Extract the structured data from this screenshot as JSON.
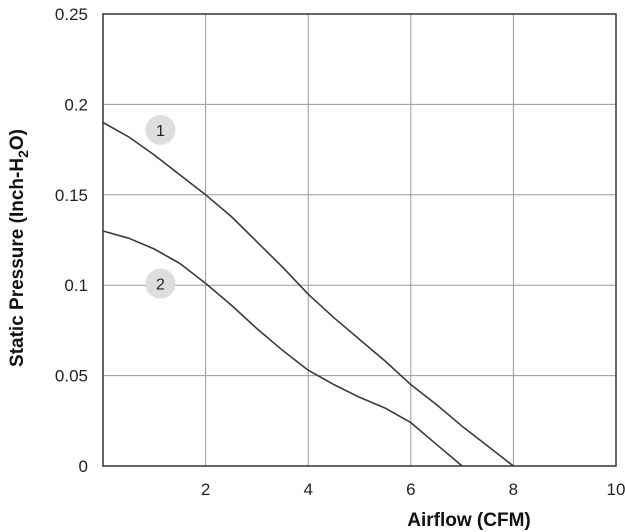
{
  "chart_data": {
    "type": "line",
    "xlabel": "Airflow (CFM)",
    "ylabel": {
      "prefix": "Static Pressure (Inch-H",
      "sub": "2",
      "suffix": "O)"
    },
    "xlim": [
      0,
      10
    ],
    "ylim": [
      0,
      0.25
    ],
    "x_ticks": [
      2,
      4,
      6,
      8,
      10
    ],
    "x_tick_labels": [
      "2",
      "4",
      "6",
      "8",
      "10"
    ],
    "y_ticks": [
      0,
      0.05,
      0.1,
      0.15,
      0.2,
      0.25
    ],
    "y_tick_labels": [
      "0",
      "0.05",
      "0.1",
      "0.15",
      "0.2",
      "0.25"
    ],
    "grid": true,
    "series": [
      {
        "label": "1",
        "color": "#3a3a3a",
        "points": [
          [
            0,
            0.19
          ],
          [
            0.5,
            0.182
          ],
          [
            1,
            0.172
          ],
          [
            1.5,
            0.161
          ],
          [
            2,
            0.15
          ],
          [
            2.5,
            0.138
          ],
          [
            3,
            0.124
          ],
          [
            3.5,
            0.11
          ],
          [
            4,
            0.095
          ],
          [
            4.5,
            0.082
          ],
          [
            5,
            0.07
          ],
          [
            5.5,
            0.058
          ],
          [
            6,
            0.045
          ],
          [
            6.5,
            0.034
          ],
          [
            7,
            0.022
          ],
          [
            7.5,
            0.011
          ],
          [
            8,
            0
          ]
        ]
      },
      {
        "label": "2",
        "color": "#3a3a3a",
        "points": [
          [
            0,
            0.13
          ],
          [
            0.5,
            0.126
          ],
          [
            1,
            0.12
          ],
          [
            1.5,
            0.112
          ],
          [
            2,
            0.101
          ],
          [
            2.5,
            0.089
          ],
          [
            3,
            0.076
          ],
          [
            3.5,
            0.064
          ],
          [
            4,
            0.053
          ],
          [
            4.5,
            0.045
          ],
          [
            5,
            0.038
          ],
          [
            5.5,
            0.032
          ],
          [
            6,
            0.024
          ],
          [
            6.5,
            0.012
          ],
          [
            7,
            0
          ]
        ]
      }
    ],
    "callouts": [
      {
        "text": "1",
        "x": 1.12,
        "y": 0.187
      },
      {
        "text": "2",
        "x": 1.12,
        "y": 0.102
      }
    ]
  }
}
